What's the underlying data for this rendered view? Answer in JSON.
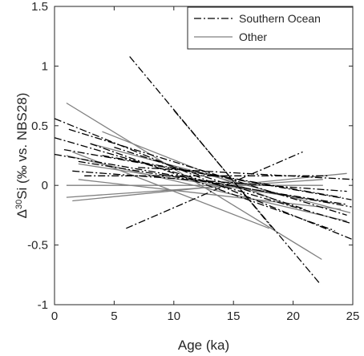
{
  "chart_data": {
    "type": "line",
    "xlabel": "Age (ka)",
    "ylabel_prefix": "Δ",
    "ylabel_sup": "30",
    "ylabel_rest": "Si (‰ vs. NBS28)",
    "xlim": [
      0,
      25
    ],
    "ylim": [
      -1,
      1.5
    ],
    "x_ticks": [
      0,
      5,
      10,
      15,
      20,
      25
    ],
    "y_ticks": [
      -1,
      -0.5,
      0,
      0.5,
      1,
      1.5
    ],
    "x_tick_labels": [
      "0",
      "5",
      "10",
      "15",
      "20",
      "25"
    ],
    "y_tick_labels": [
      "-1",
      "-0.5",
      "0",
      "0.5",
      "1",
      "1.5"
    ],
    "grid": false,
    "legend_position": "top-right",
    "legend": [
      {
        "label": "Southern Ocean",
        "style": "dash-dot",
        "color": "#000000"
      },
      {
        "label": "Other",
        "style": "solid",
        "color": "#808080"
      }
    ],
    "series": [
      {
        "group": "Southern Ocean",
        "points": [
          [
            6.3,
            1.08
          ],
          [
            18.2,
            -0.35
          ]
        ]
      },
      {
        "group": "Southern Ocean",
        "points": [
          [
            10.0,
            0.63
          ],
          [
            22.3,
            -0.83
          ]
        ]
      },
      {
        "group": "Southern Ocean",
        "points": [
          [
            6.0,
            -0.36
          ],
          [
            20.8,
            0.28
          ]
        ]
      },
      {
        "group": "Southern Ocean",
        "points": [
          [
            0,
            0.56
          ],
          [
            24.9,
            -0.45
          ]
        ]
      },
      {
        "group": "Southern Ocean",
        "points": [
          [
            0,
            0.4
          ],
          [
            24.9,
            -0.32
          ]
        ]
      },
      {
        "group": "Southern Ocean",
        "points": [
          [
            1.2,
            0.47
          ],
          [
            24.5,
            -0.25
          ]
        ]
      },
      {
        "group": "Southern Ocean",
        "points": [
          [
            0,
            0.26
          ],
          [
            24.9,
            -0.18
          ]
        ]
      },
      {
        "group": "Southern Ocean",
        "points": [
          [
            0.8,
            0.3
          ],
          [
            24.9,
            -0.12
          ]
        ]
      },
      {
        "group": "Southern Ocean",
        "points": [
          [
            2.0,
            0.2
          ],
          [
            24.5,
            -0.16
          ]
        ]
      },
      {
        "group": "Southern Ocean",
        "points": [
          [
            1.5,
            0.12
          ],
          [
            24.5,
            -0.05
          ]
        ]
      },
      {
        "group": "Southern Ocean",
        "points": [
          [
            3.0,
            0.35
          ],
          [
            23.5,
            -0.38
          ]
        ]
      },
      {
        "group": "Southern Ocean",
        "points": [
          [
            4.0,
            0.25
          ],
          [
            24.0,
            -0.1
          ]
        ]
      },
      {
        "group": "Southern Ocean",
        "points": [
          [
            2.5,
            0.08
          ],
          [
            23.0,
            0.08
          ]
        ]
      },
      {
        "group": "Southern Ocean",
        "points": [
          [
            5.0,
            0.32
          ],
          [
            21.0,
            -0.2
          ]
        ]
      },
      {
        "group": "Southern Ocean",
        "points": [
          [
            7.0,
            0.15
          ],
          [
            25.0,
            0.05
          ]
        ]
      },
      {
        "group": "Other",
        "points": [
          [
            1.0,
            0.69
          ],
          [
            22.4,
            -0.62
          ]
        ]
      },
      {
        "group": "Other",
        "points": [
          [
            1.0,
            0.25
          ],
          [
            24.5,
            -0.3
          ]
        ]
      },
      {
        "group": "Other",
        "points": [
          [
            1.0,
            -0.1
          ],
          [
            22.5,
            0.05
          ]
        ]
      },
      {
        "group": "Other",
        "points": [
          [
            1.0,
            0.0
          ],
          [
            22.5,
            0.0
          ]
        ]
      },
      {
        "group": "Other",
        "points": [
          [
            1.5,
            -0.13
          ],
          [
            24.5,
            0.1
          ]
        ]
      },
      {
        "group": "Other",
        "points": [
          [
            1.5,
            0.28
          ],
          [
            18.0,
            -0.36
          ]
        ]
      },
      {
        "group": "Other",
        "points": [
          [
            2.0,
            0.05
          ],
          [
            24.0,
            -0.2
          ]
        ]
      },
      {
        "group": "Other",
        "points": [
          [
            3.0,
            0.35
          ],
          [
            24.8,
            -0.23
          ]
        ]
      },
      {
        "group": "Other",
        "points": [
          [
            2.0,
            0.18
          ],
          [
            23.5,
            -0.15
          ]
        ]
      },
      {
        "group": "Other",
        "points": [
          [
            4.0,
            0.45
          ],
          [
            20.0,
            -0.18
          ]
        ]
      }
    ]
  }
}
